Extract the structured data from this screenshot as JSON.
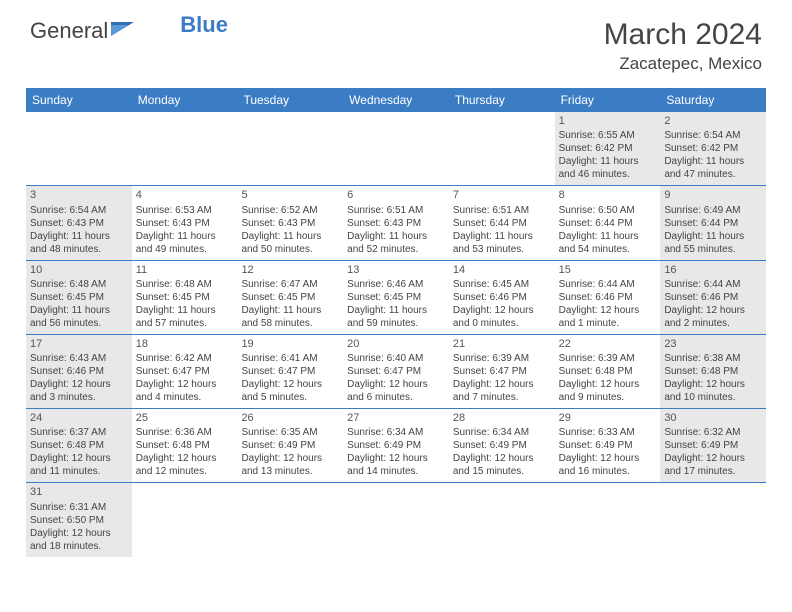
{
  "brand": {
    "part1": "General",
    "part2": "Blue"
  },
  "title": "March 2024",
  "location": "Zacatepec, Mexico",
  "colors": {
    "header_bg": "#3b7dc4",
    "shade_bg": "#e8e8e8",
    "text": "#444444",
    "divider": "#3b7dc4"
  },
  "daynames": [
    "Sunday",
    "Monday",
    "Tuesday",
    "Wednesday",
    "Thursday",
    "Friday",
    "Saturday"
  ],
  "weeks": [
    [
      {
        "n": "",
        "sr": "",
        "ss": "",
        "dl": "",
        "shaded": false
      },
      {
        "n": "",
        "sr": "",
        "ss": "",
        "dl": "",
        "shaded": false
      },
      {
        "n": "",
        "sr": "",
        "ss": "",
        "dl": "",
        "shaded": false
      },
      {
        "n": "",
        "sr": "",
        "ss": "",
        "dl": "",
        "shaded": false
      },
      {
        "n": "",
        "sr": "",
        "ss": "",
        "dl": "",
        "shaded": false
      },
      {
        "n": "1",
        "sr": "Sunrise: 6:55 AM",
        "ss": "Sunset: 6:42 PM",
        "dl": "Daylight: 11 hours and 46 minutes.",
        "shaded": true
      },
      {
        "n": "2",
        "sr": "Sunrise: 6:54 AM",
        "ss": "Sunset: 6:42 PM",
        "dl": "Daylight: 11 hours and 47 minutes.",
        "shaded": true
      }
    ],
    [
      {
        "n": "3",
        "sr": "Sunrise: 6:54 AM",
        "ss": "Sunset: 6:43 PM",
        "dl": "Daylight: 11 hours and 48 minutes.",
        "shaded": true
      },
      {
        "n": "4",
        "sr": "Sunrise: 6:53 AM",
        "ss": "Sunset: 6:43 PM",
        "dl": "Daylight: 11 hours and 49 minutes.",
        "shaded": false
      },
      {
        "n": "5",
        "sr": "Sunrise: 6:52 AM",
        "ss": "Sunset: 6:43 PM",
        "dl": "Daylight: 11 hours and 50 minutes.",
        "shaded": false
      },
      {
        "n": "6",
        "sr": "Sunrise: 6:51 AM",
        "ss": "Sunset: 6:43 PM",
        "dl": "Daylight: 11 hours and 52 minutes.",
        "shaded": false
      },
      {
        "n": "7",
        "sr": "Sunrise: 6:51 AM",
        "ss": "Sunset: 6:44 PM",
        "dl": "Daylight: 11 hours and 53 minutes.",
        "shaded": false
      },
      {
        "n": "8",
        "sr": "Sunrise: 6:50 AM",
        "ss": "Sunset: 6:44 PM",
        "dl": "Daylight: 11 hours and 54 minutes.",
        "shaded": false
      },
      {
        "n": "9",
        "sr": "Sunrise: 6:49 AM",
        "ss": "Sunset: 6:44 PM",
        "dl": "Daylight: 11 hours and 55 minutes.",
        "shaded": true
      }
    ],
    [
      {
        "n": "10",
        "sr": "Sunrise: 6:48 AM",
        "ss": "Sunset: 6:45 PM",
        "dl": "Daylight: 11 hours and 56 minutes.",
        "shaded": true
      },
      {
        "n": "11",
        "sr": "Sunrise: 6:48 AM",
        "ss": "Sunset: 6:45 PM",
        "dl": "Daylight: 11 hours and 57 minutes.",
        "shaded": false
      },
      {
        "n": "12",
        "sr": "Sunrise: 6:47 AM",
        "ss": "Sunset: 6:45 PM",
        "dl": "Daylight: 11 hours and 58 minutes.",
        "shaded": false
      },
      {
        "n": "13",
        "sr": "Sunrise: 6:46 AM",
        "ss": "Sunset: 6:45 PM",
        "dl": "Daylight: 11 hours and 59 minutes.",
        "shaded": false
      },
      {
        "n": "14",
        "sr": "Sunrise: 6:45 AM",
        "ss": "Sunset: 6:46 PM",
        "dl": "Daylight: 12 hours and 0 minutes.",
        "shaded": false
      },
      {
        "n": "15",
        "sr": "Sunrise: 6:44 AM",
        "ss": "Sunset: 6:46 PM",
        "dl": "Daylight: 12 hours and 1 minute.",
        "shaded": false
      },
      {
        "n": "16",
        "sr": "Sunrise: 6:44 AM",
        "ss": "Sunset: 6:46 PM",
        "dl": "Daylight: 12 hours and 2 minutes.",
        "shaded": true
      }
    ],
    [
      {
        "n": "17",
        "sr": "Sunrise: 6:43 AM",
        "ss": "Sunset: 6:46 PM",
        "dl": "Daylight: 12 hours and 3 minutes.",
        "shaded": true
      },
      {
        "n": "18",
        "sr": "Sunrise: 6:42 AM",
        "ss": "Sunset: 6:47 PM",
        "dl": "Daylight: 12 hours and 4 minutes.",
        "shaded": false
      },
      {
        "n": "19",
        "sr": "Sunrise: 6:41 AM",
        "ss": "Sunset: 6:47 PM",
        "dl": "Daylight: 12 hours and 5 minutes.",
        "shaded": false
      },
      {
        "n": "20",
        "sr": "Sunrise: 6:40 AM",
        "ss": "Sunset: 6:47 PM",
        "dl": "Daylight: 12 hours and 6 minutes.",
        "shaded": false
      },
      {
        "n": "21",
        "sr": "Sunrise: 6:39 AM",
        "ss": "Sunset: 6:47 PM",
        "dl": "Daylight: 12 hours and 7 minutes.",
        "shaded": false
      },
      {
        "n": "22",
        "sr": "Sunrise: 6:39 AM",
        "ss": "Sunset: 6:48 PM",
        "dl": "Daylight: 12 hours and 9 minutes.",
        "shaded": false
      },
      {
        "n": "23",
        "sr": "Sunrise: 6:38 AM",
        "ss": "Sunset: 6:48 PM",
        "dl": "Daylight: 12 hours and 10 minutes.",
        "shaded": true
      }
    ],
    [
      {
        "n": "24",
        "sr": "Sunrise: 6:37 AM",
        "ss": "Sunset: 6:48 PM",
        "dl": "Daylight: 12 hours and 11 minutes.",
        "shaded": true
      },
      {
        "n": "25",
        "sr": "Sunrise: 6:36 AM",
        "ss": "Sunset: 6:48 PM",
        "dl": "Daylight: 12 hours and 12 minutes.",
        "shaded": false
      },
      {
        "n": "26",
        "sr": "Sunrise: 6:35 AM",
        "ss": "Sunset: 6:49 PM",
        "dl": "Daylight: 12 hours and 13 minutes.",
        "shaded": false
      },
      {
        "n": "27",
        "sr": "Sunrise: 6:34 AM",
        "ss": "Sunset: 6:49 PM",
        "dl": "Daylight: 12 hours and 14 minutes.",
        "shaded": false
      },
      {
        "n": "28",
        "sr": "Sunrise: 6:34 AM",
        "ss": "Sunset: 6:49 PM",
        "dl": "Daylight: 12 hours and 15 minutes.",
        "shaded": false
      },
      {
        "n": "29",
        "sr": "Sunrise: 6:33 AM",
        "ss": "Sunset: 6:49 PM",
        "dl": "Daylight: 12 hours and 16 minutes.",
        "shaded": false
      },
      {
        "n": "30",
        "sr": "Sunrise: 6:32 AM",
        "ss": "Sunset: 6:49 PM",
        "dl": "Daylight: 12 hours and 17 minutes.",
        "shaded": true
      }
    ],
    [
      {
        "n": "31",
        "sr": "Sunrise: 6:31 AM",
        "ss": "Sunset: 6:50 PM",
        "dl": "Daylight: 12 hours and 18 minutes.",
        "shaded": true
      },
      {
        "n": "",
        "sr": "",
        "ss": "",
        "dl": "",
        "shaded": false
      },
      {
        "n": "",
        "sr": "",
        "ss": "",
        "dl": "",
        "shaded": false
      },
      {
        "n": "",
        "sr": "",
        "ss": "",
        "dl": "",
        "shaded": false
      },
      {
        "n": "",
        "sr": "",
        "ss": "",
        "dl": "",
        "shaded": false
      },
      {
        "n": "",
        "sr": "",
        "ss": "",
        "dl": "",
        "shaded": false
      },
      {
        "n": "",
        "sr": "",
        "ss": "",
        "dl": "",
        "shaded": false
      }
    ]
  ]
}
